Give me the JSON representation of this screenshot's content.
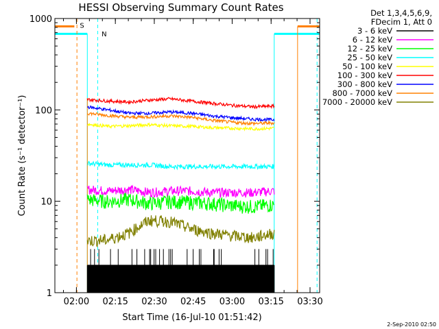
{
  "chart_data": {
    "type": "line",
    "title": "HESSI Observing Summary Count Rates",
    "xlabel": "Start Time (16-Jul-10 01:51:42)",
    "ylabel": "Count Rate (s⁻¹ detector⁻¹)",
    "y_scale": "log",
    "ylim": [
      1,
      1000
    ],
    "x_axis_start": "01:51:42",
    "xlim_minutes": [
      0,
      102
    ],
    "x_tick_labels": [
      "02:00",
      "02:15",
      "02:30",
      "02:45",
      "03:00",
      "03:15",
      "03:30"
    ],
    "y_tick_labels": [
      "1",
      "10",
      "100",
      "1000"
    ],
    "legend_header": [
      "Det 1,3,4,5,6,9,",
      "FDecim 1, Att 0"
    ],
    "footer_date": "2-Sep-2010 02:50",
    "markers": [
      {
        "label": "S",
        "color": "#ff8000",
        "kind": "saa"
      },
      {
        "label": "N",
        "color": "#00ffff",
        "kind": "night"
      }
    ],
    "series": [
      {
        "name": "3 - 6 keV",
        "color": "#000000",
        "values": [
          1,
          2
        ]
      },
      {
        "name": "6 - 12 keV",
        "color": "#ff00ff",
        "values": [
          13.5,
          13.0,
          13.5,
          12.5,
          13.0,
          13.0,
          12.5,
          12.5,
          12.5,
          13.0
        ]
      },
      {
        "name": "12 - 25 keV",
        "color": "#00ff00",
        "values": [
          10.5,
          10.0,
          10.5,
          9.5,
          10.0,
          9.8,
          9.5,
          9.0,
          8.8,
          9.2
        ]
      },
      {
        "name": "25 - 50 keV",
        "color": "#00ffff",
        "values": [
          26,
          25,
          25,
          25,
          24,
          24,
          24,
          24,
          24,
          24
        ]
      },
      {
        "name": "50 - 100 keV",
        "color": "#ffff00",
        "values": [
          70,
          66,
          67,
          69,
          67,
          66,
          64,
          63,
          62,
          63
        ]
      },
      {
        "name": "100 - 300 keV",
        "color": "#ff0000",
        "values": [
          130,
          125,
          122,
          128,
          132,
          125,
          118,
          112,
          108,
          110
        ]
      },
      {
        "name": "300 - 800 keV",
        "color": "#0000ff",
        "values": [
          108,
          100,
          92,
          92,
          95,
          92,
          86,
          82,
          79,
          78
        ]
      },
      {
        "name": "800 - 7000 keV",
        "color": "#ff8000",
        "values": [
          92,
          87,
          83,
          84,
          86,
          83,
          77,
          73,
          71,
          72
        ]
      },
      {
        "name": "7000 - 20000 keV",
        "color": "#808000",
        "values": [
          3.7,
          3.8,
          4.5,
          6.2,
          6.0,
          5.0,
          4.5,
          4.2,
          4.0,
          4.5
        ]
      }
    ]
  }
}
